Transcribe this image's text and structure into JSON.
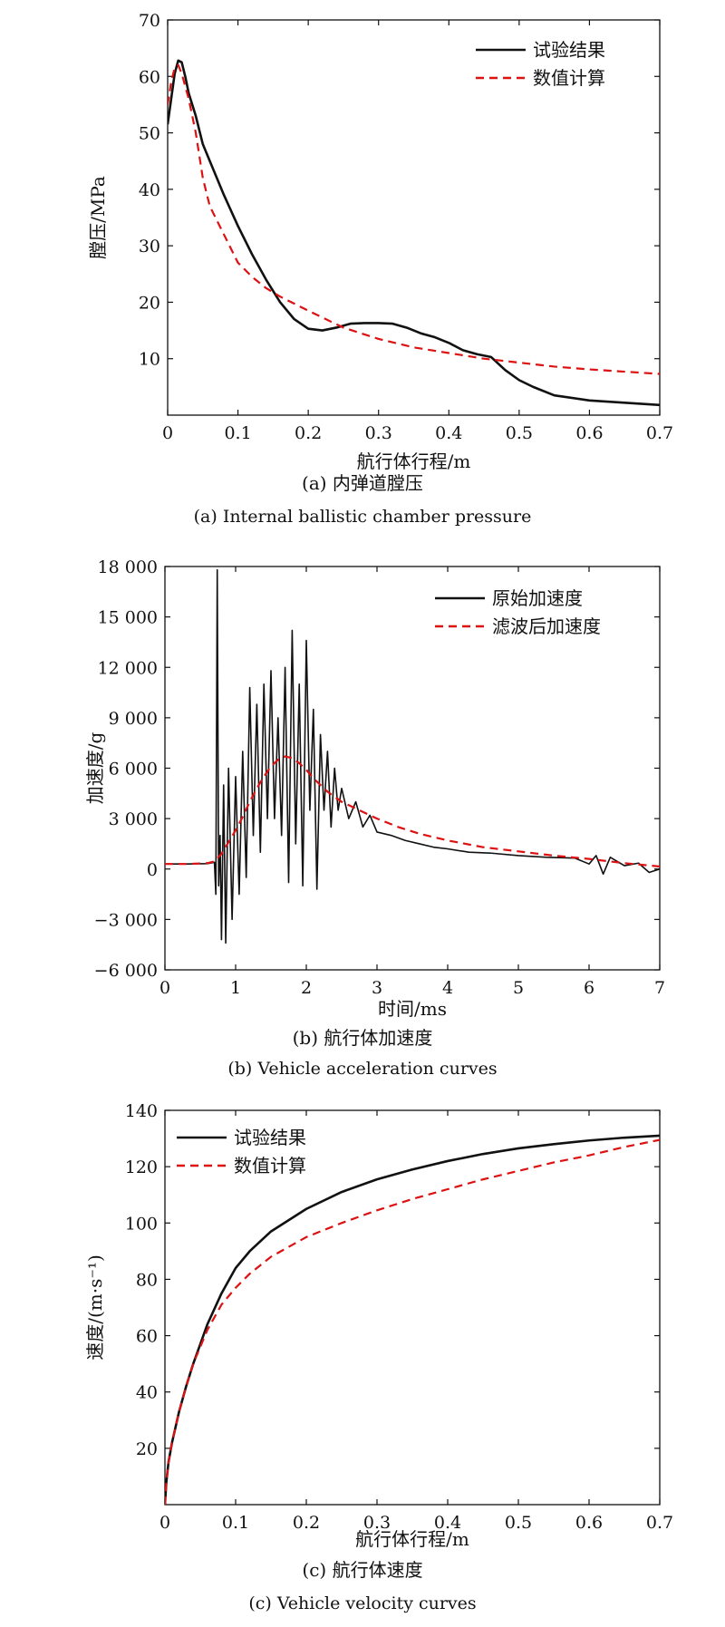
{
  "chart_data": [
    {
      "type": "line",
      "caption_cn": "(a) 内弹道膛压",
      "caption_en": "(a) Internal ballistic chamber pressure",
      "xlabel": "航行体行程/m",
      "ylabel": "膛压/MPa",
      "xlim": [
        0,
        0.7
      ],
      "ylim": [
        0,
        70
      ],
      "xticks": [
        0,
        0.1,
        0.2,
        0.3,
        0.4,
        0.5,
        0.6,
        0.7
      ],
      "xtick_labels": [
        "0",
        "0.1",
        "0.2",
        "0.3",
        "0.4",
        "0.5",
        "0.6",
        "0.7"
      ],
      "yticks": [
        10,
        20,
        30,
        40,
        50,
        60,
        70
      ],
      "ytick_labels": [
        "10",
        "20",
        "30",
        "40",
        "50",
        "60",
        "70"
      ],
      "legend_position": "top-right",
      "series": [
        {
          "name": "试验结果",
          "color": "#111111",
          "style": "solid",
          "x": [
            0,
            0.005,
            0.01,
            0.015,
            0.02,
            0.025,
            0.03,
            0.04,
            0.05,
            0.06,
            0.08,
            0.1,
            0.12,
            0.14,
            0.16,
            0.18,
            0.2,
            0.22,
            0.24,
            0.26,
            0.28,
            0.3,
            0.32,
            0.34,
            0.36,
            0.38,
            0.4,
            0.42,
            0.44,
            0.46,
            0.48,
            0.5,
            0.52,
            0.55,
            0.6,
            0.65,
            0.7
          ],
          "y": [
            51.5,
            56,
            60.5,
            62.8,
            62.5,
            60,
            57,
            53,
            48,
            45,
            39,
            33.5,
            28.5,
            24,
            20,
            17,
            15.3,
            15,
            15.5,
            16.2,
            16.3,
            16.3,
            16.2,
            15.5,
            14.5,
            13.8,
            12.8,
            11.5,
            10.8,
            10.3,
            8,
            6.2,
            5,
            3.5,
            2.6,
            2.2,
            1.8
          ]
        },
        {
          "name": "数值计算",
          "color": "#dd1111",
          "style": "dashed",
          "x": [
            0,
            0.005,
            0.01,
            0.015,
            0.02,
            0.03,
            0.04,
            0.05,
            0.06,
            0.08,
            0.1,
            0.12,
            0.14,
            0.16,
            0.2,
            0.25,
            0.3,
            0.35,
            0.4,
            0.45,
            0.5,
            0.55,
            0.6,
            0.65,
            0.7
          ],
          "y": [
            55,
            59,
            61.5,
            62,
            60.5,
            56,
            50,
            42,
            37,
            32,
            27,
            24.5,
            22.5,
            21,
            18.5,
            15.5,
            13.5,
            12,
            11,
            10,
            9.3,
            8.6,
            8.1,
            7.7,
            7.3
          ]
        }
      ]
    },
    {
      "type": "line",
      "caption_cn": "(b) 航行体加速度",
      "caption_en": "(b) Vehicle acceleration curves",
      "xlabel": "时间/ms",
      "ylabel": "加速度/g",
      "xlim": [
        0,
        7
      ],
      "ylim": [
        -6000,
        18000
      ],
      "xticks": [
        0,
        1,
        2,
        3,
        4,
        5,
        6,
        7
      ],
      "xtick_labels": [
        "0",
        "1",
        "2",
        "3",
        "4",
        "5",
        "6",
        "7"
      ],
      "yticks": [
        -6000,
        -3000,
        0,
        3000,
        6000,
        9000,
        12000,
        15000,
        18000
      ],
      "ytick_labels": [
        "−6 000",
        "−3 000",
        "0",
        "3 000",
        "6 000",
        "9 000",
        "12 000",
        "15 000",
        "18 000"
      ],
      "legend_position": "top-right",
      "series": [
        {
          "name": "原始加速度",
          "color": "#111111",
          "style": "solid",
          "x": [
            0,
            0.3,
            0.6,
            0.7,
            0.72,
            0.74,
            0.76,
            0.78,
            0.8,
            0.83,
            0.86,
            0.9,
            0.95,
            1.0,
            1.05,
            1.1,
            1.15,
            1.2,
            1.25,
            1.3,
            1.35,
            1.4,
            1.45,
            1.5,
            1.55,
            1.6,
            1.65,
            1.7,
            1.75,
            1.8,
            1.85,
            1.9,
            1.95,
            2.0,
            2.05,
            2.1,
            2.15,
            2.2,
            2.25,
            2.3,
            2.35,
            2.4,
            2.45,
            2.5,
            2.6,
            2.7,
            2.8,
            2.9,
            3.0,
            3.2,
            3.4,
            3.6,
            3.8,
            4.0,
            4.3,
            4.6,
            5.0,
            5.4,
            5.8,
            6.0,
            6.1,
            6.2,
            6.3,
            6.5,
            6.7,
            6.85,
            7.0
          ],
          "y": [
            300,
            300,
            320,
            400,
            -1500,
            17800,
            -1000,
            2000,
            -4200,
            5000,
            -4400,
            6000,
            -3000,
            5500,
            -1500,
            7000,
            -500,
            10800,
            2000,
            9800,
            1000,
            11000,
            3000,
            11800,
            3000,
            9000,
            2000,
            12000,
            -800,
            14200,
            1500,
            11000,
            -1000,
            13600,
            3500,
            9500,
            -1200,
            8000,
            3500,
            7000,
            2500,
            6000,
            3500,
            4800,
            3000,
            4000,
            2500,
            3200,
            2200,
            2000,
            1700,
            1500,
            1300,
            1200,
            1000,
            950,
            800,
            700,
            650,
            300,
            800,
            -300,
            700,
            200,
            350,
            -200,
            0
          ]
        },
        {
          "name": "滤波后加速度",
          "color": "#dd1111",
          "style": "dashed",
          "x": [
            0,
            0.3,
            0.6,
            0.7,
            0.8,
            0.9,
            1.0,
            1.1,
            1.2,
            1.3,
            1.4,
            1.5,
            1.6,
            1.7,
            1.8,
            1.9,
            2.0,
            2.1,
            2.2,
            2.3,
            2.4,
            2.5,
            2.6,
            2.7,
            2.8,
            2.9,
            3.0,
            3.3,
            3.6,
            4.0,
            4.5,
            5.0,
            5.5,
            6.0,
            6.5,
            7.0
          ],
          "y": [
            300,
            300,
            350,
            450,
            900,
            1600,
            2300,
            3100,
            4000,
            4800,
            5500,
            6100,
            6500,
            6700,
            6600,
            6300,
            5900,
            5400,
            5000,
            4600,
            4300,
            4000,
            3800,
            3600,
            3400,
            3200,
            3000,
            2500,
            2100,
            1700,
            1300,
            1050,
            800,
            600,
            350,
            150
          ]
        }
      ]
    },
    {
      "type": "line",
      "caption_cn": "(c) 航行体速度",
      "caption_en": "(c) Vehicle velocity curves",
      "xlabel": "航行体行程/m",
      "ylabel": "速度/(m·s⁻¹)",
      "xlim": [
        0,
        0.7
      ],
      "ylim": [
        0,
        140
      ],
      "xticks": [
        0,
        0.1,
        0.2,
        0.3,
        0.4,
        0.5,
        0.6,
        0.7
      ],
      "xtick_labels": [
        "0",
        "0.1",
        "0.2",
        "0.3",
        "0.4",
        "0.5",
        "0.6",
        "0.7"
      ],
      "yticks": [
        20,
        40,
        60,
        80,
        100,
        120,
        140
      ],
      "ytick_labels": [
        "20",
        "40",
        "60",
        "80",
        "100",
        "120",
        "140"
      ],
      "legend_position": "top-left",
      "series": [
        {
          "name": "试验结果",
          "color": "#111111",
          "style": "solid",
          "x": [
            0,
            0.002,
            0.005,
            0.01,
            0.02,
            0.03,
            0.04,
            0.05,
            0.06,
            0.08,
            0.1,
            0.12,
            0.15,
            0.2,
            0.25,
            0.3,
            0.35,
            0.4,
            0.45,
            0.5,
            0.55,
            0.6,
            0.65,
            0.7
          ],
          "y": [
            0,
            8,
            15,
            22,
            33,
            42,
            50,
            57,
            64,
            75,
            84,
            90,
            97,
            105,
            111,
            115.5,
            119,
            122,
            124.5,
            126.5,
            128,
            129.3,
            130.3,
            131
          ]
        },
        {
          "name": "数值计算",
          "color": "#dd1111",
          "style": "dashed",
          "x": [
            0,
            0.002,
            0.005,
            0.01,
            0.02,
            0.03,
            0.04,
            0.05,
            0.06,
            0.08,
            0.1,
            0.12,
            0.15,
            0.2,
            0.25,
            0.3,
            0.35,
            0.4,
            0.45,
            0.5,
            0.55,
            0.6,
            0.65,
            0.7
          ],
          "y": [
            0,
            8,
            15,
            22,
            33,
            42,
            50,
            56,
            62,
            71,
            77,
            82,
            88,
            95,
            100,
            104.5,
            108.5,
            112,
            115.5,
            118.5,
            121.5,
            124,
            127,
            129.5
          ]
        }
      ]
    }
  ]
}
